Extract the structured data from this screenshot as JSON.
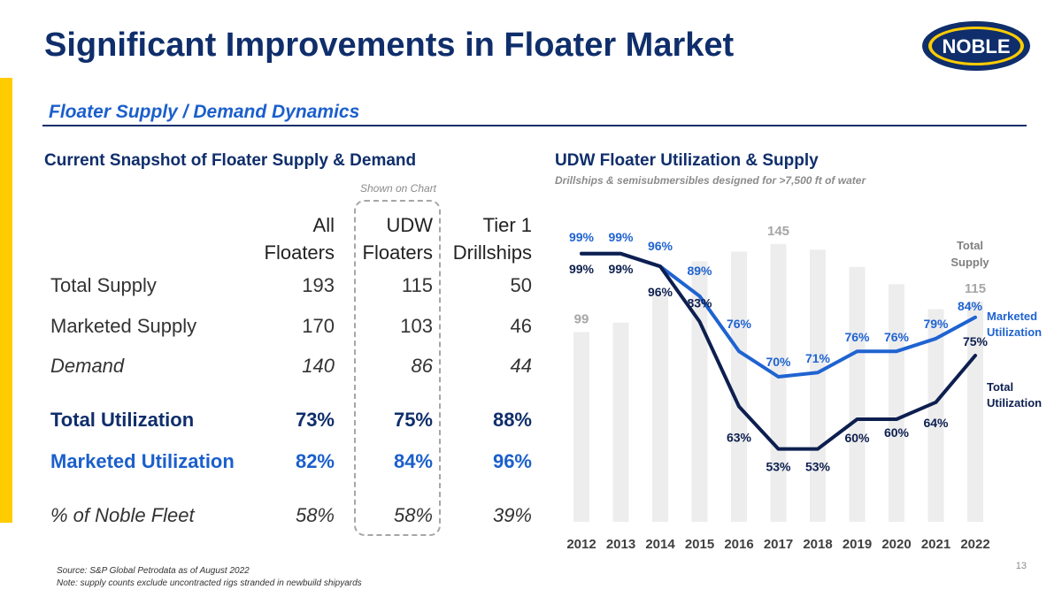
{
  "header": {
    "title": "Significant Improvements in Floater Market",
    "subtitle": "Floater Supply / Demand Dynamics",
    "logo_text": "NOBLE"
  },
  "snapshot": {
    "title": "Current Snapshot of Floater Supply & Demand",
    "shown_on_chart": "Shown on Chart",
    "columns": [
      {
        "line1": "All",
        "line2": "Floaters"
      },
      {
        "line1": "UDW",
        "line2": "Floaters"
      },
      {
        "line1": "Tier 1",
        "line2": "Drillships"
      }
    ],
    "rows": [
      {
        "label": "Total Supply",
        "values": [
          "193",
          "115",
          "50"
        ]
      },
      {
        "label": "Marketed Supply",
        "values": [
          "170",
          "103",
          "46"
        ]
      },
      {
        "label": "Demand",
        "values": [
          "140",
          "86",
          "44"
        ]
      },
      {
        "label": "Total Utilization",
        "values": [
          "73%",
          "75%",
          "88%"
        ]
      },
      {
        "label": "Marketed Utilization",
        "values": [
          "82%",
          "84%",
          "96%"
        ]
      },
      {
        "label": "% of Noble Fleet",
        "values": [
          "58%",
          "58%",
          "39%"
        ]
      }
    ]
  },
  "chart_data": {
    "type": "bar",
    "title": "UDW Floater Utilization & Supply",
    "subtitle": "Drillships & semisubmersibles designed for >7,500 ft of water",
    "categories": [
      "2012",
      "2013",
      "2014",
      "2015",
      "2016",
      "2017",
      "2018",
      "2019",
      "2020",
      "2021",
      "2022"
    ],
    "supply_series": {
      "name": "Total Supply",
      "values": [
        99,
        104,
        119,
        136,
        141,
        145,
        142,
        133,
        124,
        111,
        115
      ],
      "labeled_values": {
        "2012": "99",
        "2017": "145",
        "2022": "115"
      },
      "color": "#EDEDED",
      "label_color": "#A6A6A6"
    },
    "series": [
      {
        "name": "Marketed Utilization",
        "type": "line",
        "color": "#1F63D1",
        "values": [
          99,
          99,
          96,
          89,
          76,
          70,
          71,
          76,
          76,
          79,
          84
        ],
        "labels": [
          "99%",
          "99%",
          "96%",
          "89%",
          "76%",
          "70%",
          "71%",
          "76%",
          "76%",
          "79%",
          "84%"
        ]
      },
      {
        "name": "Total Utilization",
        "type": "line",
        "color": "#0D1F4F",
        "values": [
          99,
          99,
          96,
          83,
          63,
          53,
          53,
          60,
          60,
          64,
          75
        ],
        "labels": [
          "99%",
          "99%",
          "96%",
          "83%",
          "63%",
          "53%",
          "53%",
          "60%",
          "60%",
          "64%",
          "75%"
        ]
      }
    ],
    "legend": {
      "total_supply_line1": "Total",
      "total_supply_line2": "Supply",
      "marketed_line1": "Marketed",
      "marketed_line2": "Utilization",
      "total_util_line1": "Total",
      "total_util_line2": "Utilization"
    },
    "ylim_utilization": [
      45,
      100
    ],
    "ylim_supply": [
      0,
      150
    ]
  },
  "footer": {
    "source": "Source:  S&P Global Petrodata as of August 2022",
    "note": "Note:  supply counts exclude uncontracted rigs stranded in newbuild shipyards",
    "page": "13"
  },
  "colors": {
    "navy": "#0F2E6B",
    "blue": "#1B5FCC",
    "yellow": "#FFCC00"
  }
}
